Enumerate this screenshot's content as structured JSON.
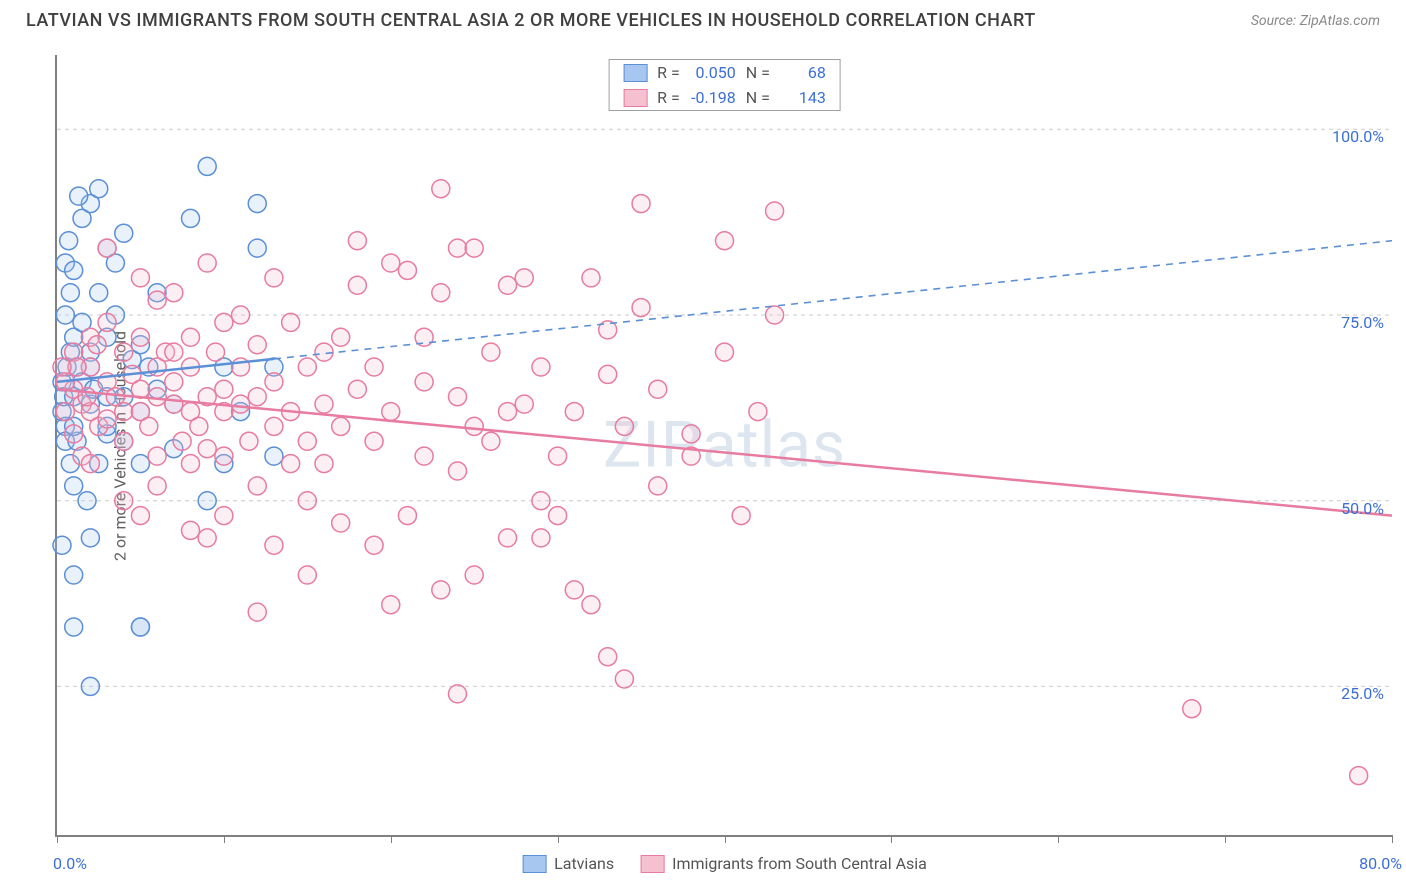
{
  "header": {
    "title": "LATVIAN VS IMMIGRANTS FROM SOUTH CENTRAL ASIA 2 OR MORE VEHICLES IN HOUSEHOLD CORRELATION CHART",
    "source": "Source: ZipAtlas.com"
  },
  "chart": {
    "type": "scatter",
    "ylabel": "2 or more Vehicles in Household",
    "watermark": "ZIPatlas",
    "xlim": [
      0,
      80
    ],
    "ylim": [
      5,
      110
    ],
    "x_ticks": [
      0,
      10,
      20,
      30,
      40,
      50,
      60,
      70,
      80
    ],
    "x_tick_labels": {
      "0": "0.0%",
      "80": "80.0%"
    },
    "y_ticks": [
      25,
      50,
      75,
      100
    ],
    "y_tick_labels": [
      "25.0%",
      "50.0%",
      "75.0%",
      "100.0%"
    ],
    "grid_color": "#cccccc",
    "axis_color": "#808080",
    "background_color": "#ffffff",
    "marker_radius": 9,
    "marker_stroke_width": 1.5,
    "marker_fill_opacity": 0.25,
    "label_color": "#3b6fd6",
    "label_fontsize": 16,
    "title_fontsize": 18,
    "trend_stroke_width": 2.5,
    "series": [
      {
        "name": "Latvians",
        "color_fill": "#a8c7f0",
        "color_stroke": "#5b8fd6",
        "R": "0.050",
        "N": "68",
        "trend": {
          "x1": 0,
          "y1": 66,
          "x2": 80,
          "y2": 85,
          "solid_until_x": 13
        },
        "points": [
          [
            0.3,
            66
          ],
          [
            0.3,
            62
          ],
          [
            0.5,
            60
          ],
          [
            0.4,
            64
          ],
          [
            0.6,
            68
          ],
          [
            0.8,
            70
          ],
          [
            0.5,
            58
          ],
          [
            1,
            72
          ],
          [
            0.8,
            55
          ],
          [
            1,
            52
          ],
          [
            1.2,
            58
          ],
          [
            0.5,
            82
          ],
          [
            1,
            64
          ],
          [
            1.2,
            68
          ],
          [
            1.5,
            66
          ],
          [
            1,
            60
          ],
          [
            2,
            63
          ],
          [
            2.2,
            65
          ],
          [
            2,
            70
          ],
          [
            2.5,
            55
          ],
          [
            3,
            59
          ],
          [
            1.8,
            50
          ],
          [
            0.7,
            85
          ],
          [
            1.5,
            88
          ],
          [
            2,
            90
          ],
          [
            2.5,
            92
          ],
          [
            3,
            84
          ],
          [
            3.5,
            82
          ],
          [
            4,
            86
          ],
          [
            1,
            81
          ],
          [
            2,
            68
          ],
          [
            3,
            72
          ],
          [
            3,
            60
          ],
          [
            4,
            64
          ],
          [
            4,
            58
          ],
          [
            5,
            62
          ],
          [
            5,
            55
          ],
          [
            5.5,
            68
          ],
          [
            6,
            65
          ],
          [
            6,
            78
          ],
          [
            7,
            57
          ],
          [
            7,
            63
          ],
          [
            8,
            88
          ],
          [
            9,
            95
          ],
          [
            9,
            50
          ],
          [
            10,
            55
          ],
          [
            10,
            68
          ],
          [
            11,
            62
          ],
          [
            12,
            84
          ],
          [
            12,
            90
          ],
          [
            13,
            56
          ],
          [
            13,
            68
          ],
          [
            2,
            45
          ],
          [
            2,
            25
          ],
          [
            5,
            33
          ],
          [
            5,
            33
          ],
          [
            1,
            33
          ],
          [
            1,
            40
          ],
          [
            0.5,
            75
          ],
          [
            0.8,
            78
          ],
          [
            1.5,
            74
          ],
          [
            2.5,
            78
          ],
          [
            3.5,
            75
          ],
          [
            4.5,
            69
          ],
          [
            5,
            71
          ],
          [
            3,
            64
          ],
          [
            1.3,
            91
          ],
          [
            0.3,
            44
          ]
        ]
      },
      {
        "name": "Immigrants from South Central Asia",
        "color_fill": "#f5c0cf",
        "color_stroke": "#e87ba0",
        "R": "-0.198",
        "N": "143",
        "trend": {
          "x1": 0,
          "y1": 65,
          "x2": 80,
          "y2": 48,
          "solid_until_x": 80
        },
        "points": [
          [
            1,
            65
          ],
          [
            1.5,
            63
          ],
          [
            2,
            62
          ],
          [
            2,
            68
          ],
          [
            2.5,
            60
          ],
          [
            3,
            66
          ],
          [
            3,
            61
          ],
          [
            0.5,
            66
          ],
          [
            3.5,
            64
          ],
          [
            4,
            62
          ],
          [
            4,
            58
          ],
          [
            4.5,
            67
          ],
          [
            5,
            65
          ],
          [
            5,
            62
          ],
          [
            5.5,
            60
          ],
          [
            6,
            68
          ],
          [
            6,
            64
          ],
          [
            6,
            56
          ],
          [
            1,
            59
          ],
          [
            1.5,
            56
          ],
          [
            6.5,
            70
          ],
          [
            7,
            63
          ],
          [
            7,
            66
          ],
          [
            7.5,
            58
          ],
          [
            8,
            62
          ],
          [
            8,
            68
          ],
          [
            8,
            72
          ],
          [
            8.5,
            60
          ],
          [
            9,
            64
          ],
          [
            9,
            57
          ],
          [
            9.5,
            70
          ],
          [
            10,
            65
          ],
          [
            10,
            62
          ],
          [
            10,
            74
          ],
          [
            11,
            63
          ],
          [
            11,
            68
          ],
          [
            11.5,
            58
          ],
          [
            12,
            71
          ],
          [
            12,
            64
          ],
          [
            13,
            66
          ],
          [
            13,
            60
          ],
          [
            14,
            74
          ],
          [
            14,
            62
          ],
          [
            15,
            68
          ],
          [
            15,
            58
          ],
          [
            16,
            70
          ],
          [
            16,
            63
          ],
          [
            17,
            72
          ],
          [
            17,
            60
          ],
          [
            18,
            65
          ],
          [
            18,
            79
          ],
          [
            19,
            68
          ],
          [
            20,
            62
          ],
          [
            20,
            82
          ],
          [
            21,
            81
          ],
          [
            22,
            56
          ],
          [
            23,
            78
          ],
          [
            24,
            84
          ],
          [
            24,
            64
          ],
          [
            25,
            84
          ],
          [
            25,
            60
          ],
          [
            26,
            70
          ],
          [
            27,
            79
          ],
          [
            28,
            63
          ],
          [
            29,
            68
          ],
          [
            30,
            56
          ],
          [
            31,
            62
          ],
          [
            32,
            80
          ],
          [
            33,
            73
          ],
          [
            34,
            60
          ],
          [
            35,
            76
          ],
          [
            35,
            90
          ],
          [
            36,
            65
          ],
          [
            38,
            56
          ],
          [
            40,
            70
          ],
          [
            42,
            62
          ],
          [
            43,
            89
          ],
          [
            23,
            92
          ],
          [
            8,
            46
          ],
          [
            9,
            45
          ],
          [
            10,
            48
          ],
          [
            12,
            52
          ],
          [
            13,
            44
          ],
          [
            15,
            50
          ],
          [
            17,
            47
          ],
          [
            19,
            44
          ],
          [
            21,
            48
          ],
          [
            23,
            38
          ],
          [
            25,
            40
          ],
          [
            27,
            45
          ],
          [
            29,
            50
          ],
          [
            31,
            38
          ],
          [
            33,
            29
          ],
          [
            32,
            36
          ],
          [
            24,
            24
          ],
          [
            30,
            48
          ],
          [
            20,
            36
          ],
          [
            15,
            40
          ],
          [
            12,
            35
          ],
          [
            10,
            56
          ],
          [
            6,
            52
          ],
          [
            4,
            50
          ],
          [
            4,
            70
          ],
          [
            5,
            72
          ],
          [
            6,
            77
          ],
          [
            34,
            26
          ],
          [
            68,
            22
          ],
          [
            78,
            13
          ],
          [
            43,
            75
          ],
          [
            28,
            80
          ],
          [
            18,
            85
          ],
          [
            3,
            74
          ],
          [
            2,
            72
          ],
          [
            1,
            70
          ],
          [
            22,
            72
          ],
          [
            13,
            80
          ],
          [
            40,
            85
          ],
          [
            7,
            78
          ],
          [
            9,
            82
          ],
          [
            11,
            75
          ],
          [
            5,
            80
          ],
          [
            3,
            84
          ],
          [
            7,
            70
          ],
          [
            16,
            55
          ],
          [
            26,
            58
          ],
          [
            36,
            52
          ],
          [
            41,
            48
          ],
          [
            22,
            66
          ],
          [
            27,
            62
          ],
          [
            33,
            67
          ],
          [
            38,
            59
          ],
          [
            14,
            55
          ],
          [
            19,
            58
          ],
          [
            24,
            54
          ],
          [
            29,
            45
          ],
          [
            8,
            55
          ],
          [
            5,
            48
          ],
          [
            2,
            55
          ],
          [
            0.5,
            62
          ],
          [
            1.2,
            68
          ],
          [
            1.8,
            64
          ],
          [
            2.4,
            71
          ],
          [
            0.3,
            68
          ]
        ]
      }
    ],
    "bottom_legend": [
      {
        "label": "Latvians",
        "color_fill": "#a8c7f0",
        "color_stroke": "#5b8fd6"
      },
      {
        "label": "Immigrants from South Central Asia",
        "color_fill": "#f5c0cf",
        "color_stroke": "#e87ba0"
      }
    ]
  }
}
